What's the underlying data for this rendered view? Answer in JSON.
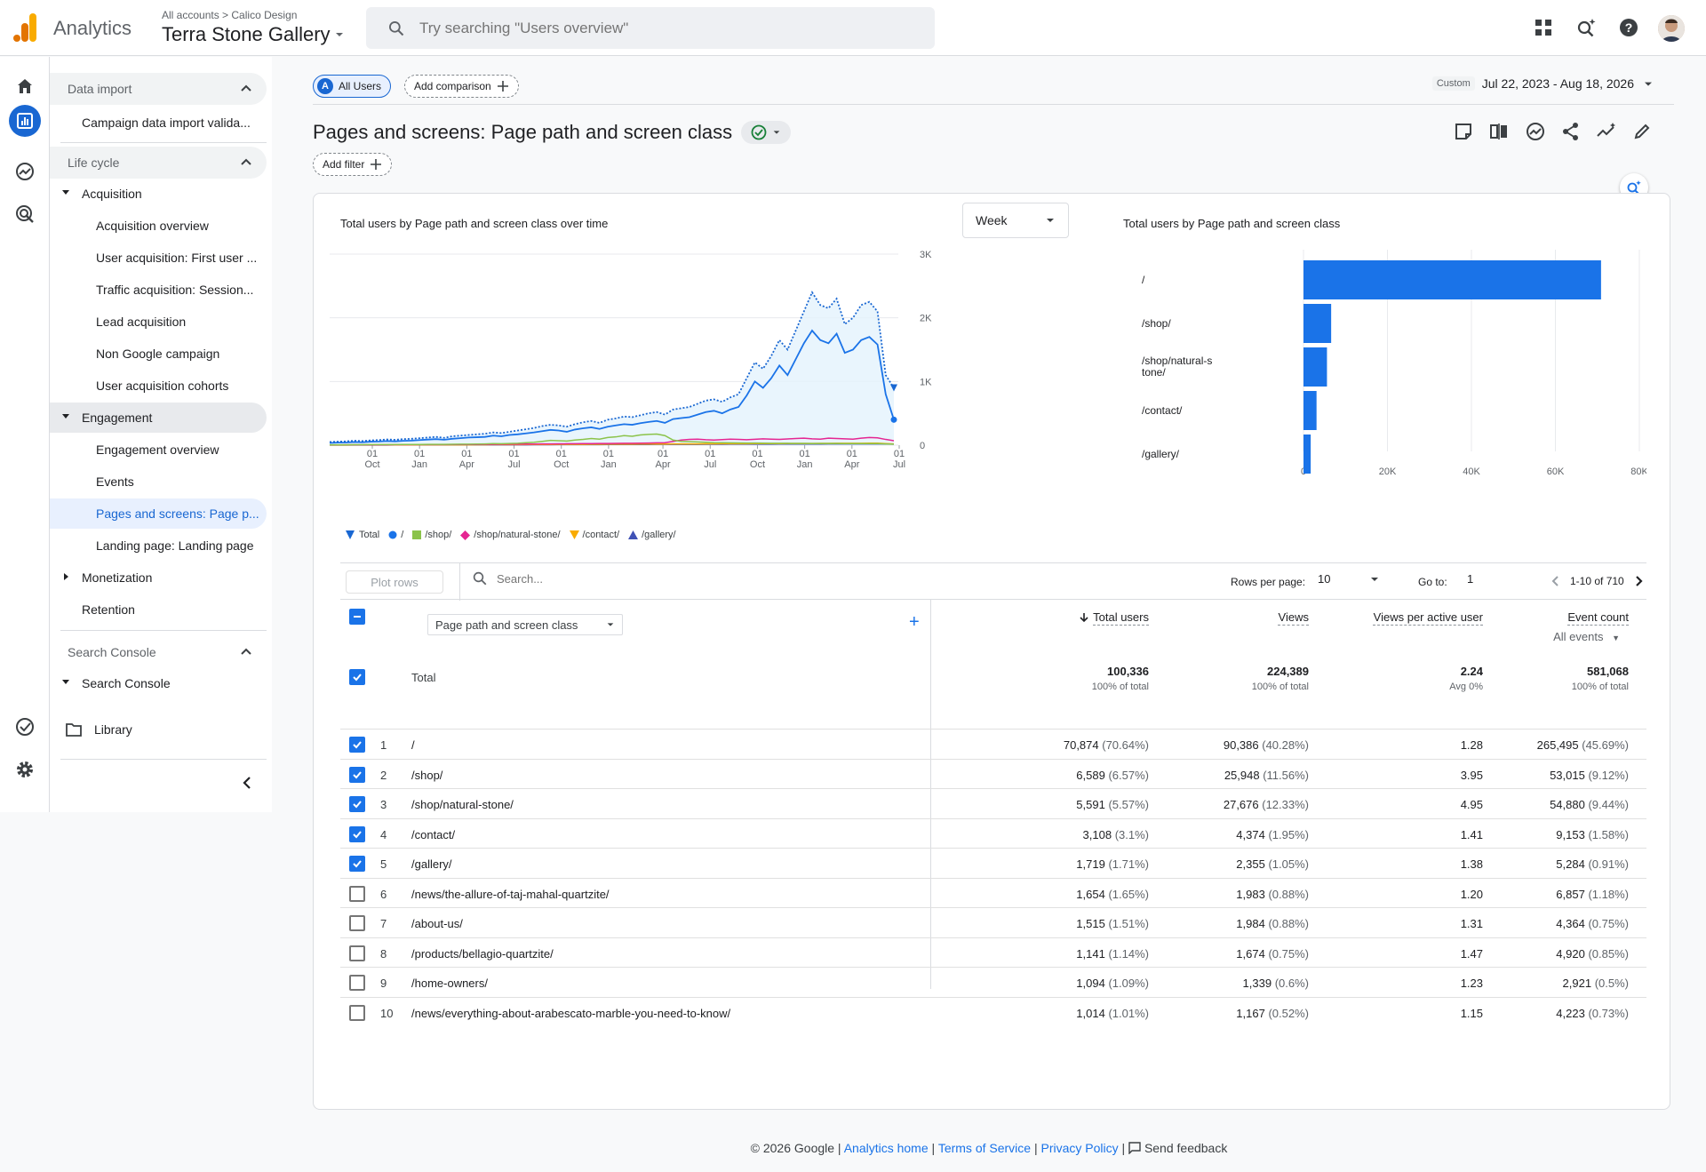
{
  "topbar": {
    "product": "Analytics",
    "breadcrumb_all": "All accounts",
    "breadcrumb_account": "Calico Design",
    "property": "Terra Stone Gallery",
    "search_placeholder": "Try searching \"Users overview\"",
    "icons": [
      "apps-icon",
      "search-insights-icon",
      "help-icon",
      "avatar"
    ]
  },
  "rail": {
    "icons": [
      "home-icon",
      "reports-icon",
      "explore-icon",
      "advertising-icon",
      "admin-check-icon",
      "settings-icon"
    ]
  },
  "nav": {
    "data_import_head": "Data import",
    "data_import_item": "Campaign data import valida...",
    "lifecycle_head": "Life cycle",
    "acquisition": "Acquisition",
    "acq_items": [
      "Acquisition overview",
      "User acquisition: First user ...",
      "Traffic acquisition: Session...",
      "Lead acquisition",
      "Non Google campaign",
      "User acquisition cohorts"
    ],
    "engagement": "Engagement",
    "eng_items": [
      "Engagement overview",
      "Events",
      "Pages and screens: Page p...",
      "Landing page: Landing page"
    ],
    "monetization": "Monetization",
    "retention": "Retention",
    "search_console_head": "Search Console",
    "search_console": "Search Console",
    "library": "Library"
  },
  "toolbar": {
    "all_users_badge": "A",
    "all_users": "All Users",
    "add_comparison": "Add comparison",
    "date_custom": "Custom",
    "date_range": "Jul 22, 2023 - Aug 18, 2026",
    "title": "Pages and screens: Page path and screen class",
    "add_filter": "Add filter"
  },
  "line_chart": {
    "title": "Total users by Page path and screen class over time",
    "granularity": "Week"
  },
  "legend": [
    "Total",
    "/",
    "/shop/",
    "/shop/natural-stone/",
    "/contact/",
    "/gallery/"
  ],
  "colors": {
    "total": "#1967d2",
    "root": "#1a73e8",
    "shop": "#8bc34a",
    "natural_stone": "#e52592",
    "contact": "#f9ab00",
    "gallery": "#3f51b5",
    "bar": "#1a73e8",
    "accent": "#1967d2"
  },
  "chart_data": [
    {
      "type": "line",
      "title": "Total users by Page path and screen class over time",
      "x_ticks": [
        [
          "01",
          "Oct"
        ],
        [
          "01",
          "Jan"
        ],
        [
          "01",
          "Apr"
        ],
        [
          "01",
          "Jul"
        ],
        [
          "01",
          "Oct"
        ],
        [
          "01",
          "Jan"
        ],
        [
          "01",
          "Apr"
        ],
        [
          "01",
          "Jul"
        ],
        [
          "01",
          "Oct"
        ],
        [
          "01",
          "Jan"
        ],
        [
          "01",
          "Apr"
        ],
        [
          "01",
          "Jul"
        ]
      ],
      "y_ticks": [
        "3K",
        "2K",
        "1K",
        "0"
      ],
      "ylim": [
        0,
        3000
      ],
      "series": [
        {
          "name": "Total",
          "style": "dotted",
          "values": [
            50,
            55,
            60,
            70,
            65,
            75,
            80,
            90,
            85,
            95,
            100,
            110,
            120,
            130,
            115,
            140,
            150,
            160,
            170,
            180,
            200,
            190,
            210,
            230,
            250,
            270,
            300,
            320,
            310,
            290,
            330,
            360,
            380,
            350,
            400,
            420,
            450,
            440,
            470,
            500,
            520,
            480,
            560,
            580,
            600,
            650,
            700,
            720,
            680,
            750,
            800,
            1050,
            1300,
            1200,
            1400,
            1650,
            1500,
            1800,
            2100,
            2400,
            2200,
            2150,
            2300,
            1900,
            2000,
            2200,
            2250,
            2100,
            1100,
            900
          ]
        },
        {
          "name": "/",
          "style": "solid",
          "values": [
            35,
            40,
            42,
            50,
            45,
            55,
            58,
            65,
            60,
            68,
            72,
            80,
            88,
            95,
            85,
            100,
            110,
            120,
            125,
            130,
            150,
            140,
            160,
            170,
            185,
            200,
            220,
            240,
            230,
            210,
            245,
            265,
            280,
            255,
            290,
            310,
            330,
            320,
            345,
            365,
            380,
            350,
            410,
            425,
            440,
            480,
            520,
            540,
            500,
            560,
            600,
            780,
            1000,
            900,
            1050,
            1250,
            1100,
            1350,
            1600,
            1800,
            1650,
            1600,
            1750,
            1450,
            1500,
            1650,
            1700,
            1580,
            800,
            400
          ]
        },
        {
          "name": "/shop/",
          "style": "solid",
          "values": [
            5,
            6,
            6,
            7,
            7,
            8,
            8,
            9,
            9,
            10,
            10,
            11,
            12,
            13,
            12,
            14,
            15,
            16,
            18,
            20,
            24,
            22,
            26,
            30,
            38,
            45,
            60,
            75,
            70,
            65,
            80,
            90,
            105,
            95,
            120,
            130,
            150,
            140,
            160,
            170,
            175,
            150,
            80,
            60,
            55,
            50,
            45,
            40,
            38,
            36,
            35,
            34,
            33,
            32,
            30,
            30,
            29,
            28,
            28,
            27,
            27,
            26,
            26,
            25,
            25,
            25,
            24,
            24,
            20,
            15
          ]
        },
        {
          "name": "/shop/natural-stone/",
          "style": "solid",
          "values": [
            4,
            4,
            5,
            5,
            5,
            6,
            6,
            6,
            7,
            7,
            7,
            8,
            8,
            9,
            9,
            10,
            10,
            11,
            11,
            12,
            13,
            14,
            15,
            16,
            17,
            18,
            19,
            20,
            21,
            22,
            23,
            24,
            25,
            26,
            27,
            28,
            29,
            30,
            32,
            34,
            36,
            38,
            60,
            80,
            90,
            95,
            85,
            80,
            88,
            95,
            90,
            85,
            92,
            100,
            95,
            90,
            98,
            105,
            110,
            100,
            95,
            110,
            105,
            100,
            95,
            110,
            120,
            115,
            90,
            70
          ]
        },
        {
          "name": "/contact/",
          "style": "solid",
          "values": [
            2,
            2,
            2,
            3,
            3,
            3,
            3,
            4,
            4,
            4,
            4,
            5,
            5,
            5,
            5,
            6,
            6,
            6,
            7,
            7,
            8,
            8,
            9,
            9,
            10,
            10,
            11,
            11,
            12,
            12,
            13,
            13,
            14,
            14,
            15,
            15,
            16,
            16,
            17,
            17,
            18,
            18,
            19,
            19,
            20,
            20,
            21,
            21,
            22,
            22,
            23,
            23,
            24,
            24,
            25,
            25,
            26,
            26,
            27,
            27,
            28,
            28,
            29,
            29,
            30,
            30,
            31,
            31,
            25,
            20
          ]
        },
        {
          "name": "/gallery/",
          "style": "solid",
          "values": [
            1,
            1,
            1,
            2,
            2,
            2,
            2,
            2,
            3,
            3,
            3,
            3,
            3,
            4,
            4,
            4,
            4,
            5,
            5,
            5,
            5,
            6,
            6,
            6,
            6,
            7,
            7,
            7,
            8,
            8,
            8,
            9,
            9,
            9,
            10,
            10,
            10,
            11,
            11,
            11,
            12,
            12,
            12,
            13,
            13,
            13,
            14,
            14,
            14,
            15,
            15,
            15,
            16,
            16,
            16,
            17,
            17,
            17,
            18,
            18,
            18,
            19,
            19,
            19,
            20,
            20,
            20,
            21,
            18,
            15
          ]
        }
      ]
    },
    {
      "type": "bar",
      "title": "Total users by Page path and screen class",
      "orientation": "horizontal",
      "categories": [
        "/",
        "/shop/",
        "/shop/natural-stone/",
        "/contact/",
        "/gallery/"
      ],
      "category_lines": [
        [
          "/"
        ],
        [
          "/shop/"
        ],
        [
          "/shop/natural-s",
          "tone/"
        ],
        [
          "/contact/"
        ],
        [
          "/gallery/"
        ]
      ],
      "values": [
        70874,
        6589,
        5591,
        3108,
        1719
      ],
      "x_ticks": [
        "0",
        "20K",
        "40K",
        "60K",
        "80K"
      ],
      "xlim": [
        0,
        80000
      ]
    }
  ],
  "table": {
    "plot_rows": "Plot rows",
    "search_placeholder": "Search...",
    "rows_per_page_label": "Rows per page:",
    "rows_per_page": "10",
    "goto_label": "Go to:",
    "goto_value": "1",
    "page_range": "1-10 of 710",
    "dimension": "Page path and screen class",
    "add_dimension": "+",
    "headers": {
      "users": "Total users",
      "views": "Views",
      "vpau": "Views per active user",
      "events": "Event count"
    },
    "events_filter": "All events",
    "total_label": "Total",
    "totals": {
      "users": "100,336",
      "users_sub": "100% of total",
      "views": "224,389",
      "views_sub": "100% of total",
      "vpau": "2.24",
      "vpau_sub": "Avg 0%",
      "events": "581,068",
      "events_sub": "100% of total"
    },
    "rows": [
      {
        "n": "1",
        "path": "/",
        "users": "70,874",
        "users_pct": "(70.64%)",
        "views": "90,386",
        "views_pct": "(40.28%)",
        "vpau": "1.28",
        "events": "265,495",
        "events_pct": "(45.69%)",
        "checked": true
      },
      {
        "n": "2",
        "path": "/shop/",
        "users": "6,589",
        "users_pct": "(6.57%)",
        "views": "25,948",
        "views_pct": "(11.56%)",
        "vpau": "3.95",
        "events": "53,015",
        "events_pct": "(9.12%)",
        "checked": true
      },
      {
        "n": "3",
        "path": "/shop/natural-stone/",
        "users": "5,591",
        "users_pct": "(5.57%)",
        "views": "27,676",
        "views_pct": "(12.33%)",
        "vpau": "4.95",
        "events": "54,880",
        "events_pct": "(9.44%)",
        "checked": true
      },
      {
        "n": "4",
        "path": "/contact/",
        "users": "3,108",
        "users_pct": "(3.1%)",
        "views": "4,374",
        "views_pct": "(1.95%)",
        "vpau": "1.41",
        "events": "9,153",
        "events_pct": "(1.58%)",
        "checked": true
      },
      {
        "n": "5",
        "path": "/gallery/",
        "users": "1,719",
        "users_pct": "(1.71%)",
        "views": "2,355",
        "views_pct": "(1.05%)",
        "vpau": "1.38",
        "events": "5,284",
        "events_pct": "(0.91%)",
        "checked": true
      },
      {
        "n": "6",
        "path": "/news/the-allure-of-taj-mahal-quartzite/",
        "users": "1,654",
        "users_pct": "(1.65%)",
        "views": "1,983",
        "views_pct": "(0.88%)",
        "vpau": "1.20",
        "events": "6,857",
        "events_pct": "(1.18%)",
        "checked": false
      },
      {
        "n": "7",
        "path": "/about-us/",
        "users": "1,515",
        "users_pct": "(1.51%)",
        "views": "1,984",
        "views_pct": "(0.88%)",
        "vpau": "1.31",
        "events": "4,364",
        "events_pct": "(0.75%)",
        "checked": false
      },
      {
        "n": "8",
        "path": "/products/bellagio-quartzite/",
        "users": "1,141",
        "users_pct": "(1.14%)",
        "views": "1,674",
        "views_pct": "(0.75%)",
        "vpau": "1.47",
        "events": "4,920",
        "events_pct": "(0.85%)",
        "checked": false
      },
      {
        "n": "9",
        "path": "/home-owners/",
        "users": "1,094",
        "users_pct": "(1.09%)",
        "views": "1,339",
        "views_pct": "(0.6%)",
        "vpau": "1.23",
        "events": "2,921",
        "events_pct": "(0.5%)",
        "checked": false
      },
      {
        "n": "10",
        "path": "/news/everything-about-arabescato-marble-you-need-to-know/",
        "users": "1,014",
        "users_pct": "(1.01%)",
        "views": "1,167",
        "views_pct": "(0.52%)",
        "vpau": "1.15",
        "events": "4,223",
        "events_pct": "(0.73%)",
        "checked": false
      }
    ]
  },
  "footer": {
    "copyright": "© 2026 Google",
    "analytics_home": "Analytics home",
    "terms": "Terms of Service",
    "privacy": "Privacy Policy",
    "feedback": "Send feedback"
  }
}
